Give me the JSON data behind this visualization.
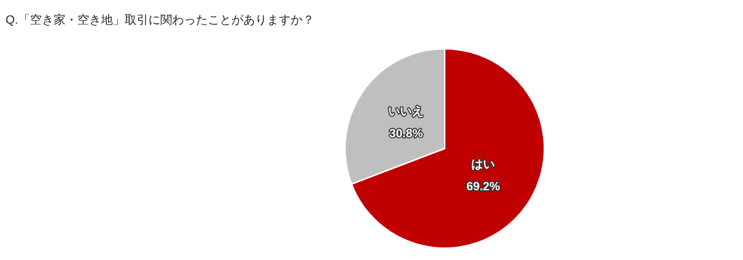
{
  "chart_data": {
    "type": "pie",
    "title": "Q.「空き家・空き地」取引に関わったことがありますか？",
    "categories": [
      "はい",
      "いいえ"
    ],
    "values": [
      69.2,
      30.8
    ],
    "colors": [
      "#c00000",
      "#bfbfbf"
    ],
    "value_labels": [
      "69.2%",
      "30.8%"
    ]
  }
}
